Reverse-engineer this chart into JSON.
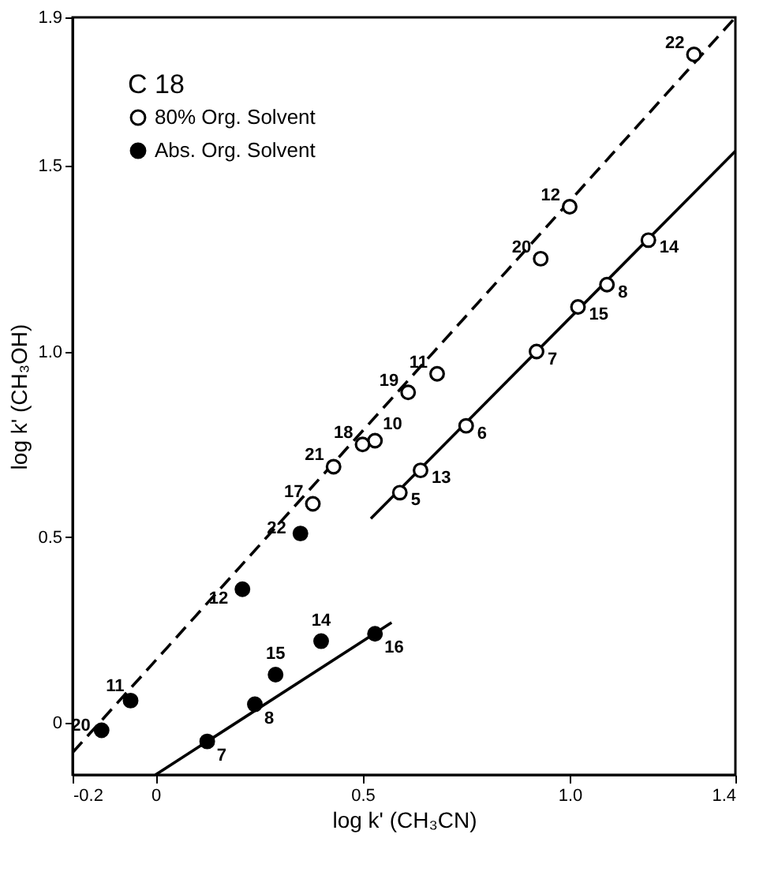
{
  "chart_data": {
    "type": "scatter",
    "xlabel": "log k' (CH₃CN)",
    "ylabel": "log k' (CH₃OH)",
    "legend_title": "C 18",
    "legend": "top left",
    "grid": false,
    "xlim": [
      -0.2,
      1.4
    ],
    "xticks": [
      -0.2,
      0,
      0.5,
      {
        "value": 1,
        "label": "1.0"
      },
      1.4
    ],
    "ylim": [
      -0.14,
      1.9
    ],
    "yticks": [
      0,
      0.5,
      {
        "value": 1,
        "label": "1.0"
      },
      1.5,
      1.9
    ],
    "series": [
      {
        "type": "line",
        "color": "#000000",
        "line_style": "dashed",
        "x": [
          -0.2,
          1.4
        ],
        "values": [
          -0.08,
          1.9
        ]
      },
      {
        "type": "line",
        "color": "#000000",
        "line_style": "solid",
        "x": [
          0.52,
          1.4
        ],
        "values": [
          0.55,
          1.54
        ]
      },
      {
        "type": "line",
        "color": "#000000",
        "line_style": "solid",
        "x": [
          0,
          0.57
        ],
        "values": [
          -0.14,
          0.27
        ]
      },
      {
        "name": "80% Org. Solvent",
        "color": "#ffffff",
        "marker": "circle",
        "x": [
          1.3,
          1.0,
          0.93,
          0.68,
          0.61,
          0.53,
          0.5,
          0.43,
          0.38
        ],
        "values": [
          1.8,
          1.39,
          1.25,
          0.94,
          0.89,
          0.76,
          0.75,
          0.69,
          0.59
        ]
      },
      {
        "color": "#ffffff",
        "marker": "circle",
        "x": [
          1.19,
          1.09,
          1.02,
          0.92,
          0.75,
          0.64,
          0.59
        ],
        "values": [
          1.3,
          1.18,
          1.12,
          1.0,
          0.8,
          0.68,
          0.62
        ]
      },
      {
        "name": "Abs. Org. Solvent",
        "color": "#000000",
        "marker": "circle",
        "x": [
          0.35,
          0.21,
          -0.06,
          -0.13
        ],
        "values": [
          0.51,
          0.36,
          0.06,
          -0.02
        ]
      },
      {
        "color": "#000000",
        "marker": "circle",
        "x": [
          0.4,
          0.29,
          0.53,
          0.24,
          0.125
        ],
        "values": [
          0.22,
          0.13,
          0.24,
          0.05,
          -0.05
        ]
      }
    ],
    "annotations": [
      {
        "text": "22",
        "x": 1.3,
        "y": 1.8
      },
      {
        "text": "12",
        "x": 1.0,
        "y": 1.39
      },
      {
        "text": "20",
        "x": 0.93,
        "y": 1.25
      },
      {
        "text": "11",
        "x": 0.68,
        "y": 0.94
      },
      {
        "text": "19",
        "x": 0.61,
        "y": 0.89
      },
      {
        "text": "10",
        "x": 0.53,
        "y": 0.76
      },
      {
        "text": "18",
        "x": 0.5,
        "y": 0.75
      },
      {
        "text": "21",
        "x": 0.43,
        "y": 0.69
      },
      {
        "text": "17",
        "x": 0.38,
        "y": 0.59
      },
      {
        "text": "14",
        "x": 1.19,
        "y": 1.3
      },
      {
        "text": "8",
        "x": 1.09,
        "y": 1.18
      },
      {
        "text": "15",
        "x": 1.02,
        "y": 1.12
      },
      {
        "text": "7",
        "x": 0.92,
        "y": 1.0
      },
      {
        "text": "6",
        "x": 0.75,
        "y": 0.8
      },
      {
        "text": "13",
        "x": 0.64,
        "y": 0.68
      },
      {
        "text": "5",
        "x": 0.59,
        "y": 0.62
      },
      {
        "text": "22",
        "x": 0.35,
        "y": 0.51
      },
      {
        "text": "12",
        "x": 0.21,
        "y": 0.36
      },
      {
        "text": "11",
        "x": -0.06,
        "y": 0.06
      },
      {
        "text": "20",
        "x": -0.13,
        "y": -0.02
      },
      {
        "text": "14",
        "x": 0.4,
        "y": 0.22
      },
      {
        "text": "15",
        "x": 0.29,
        "y": 0.13
      },
      {
        "text": "16",
        "x": 0.53,
        "y": 0.24
      },
      {
        "text": "8",
        "x": 0.24,
        "y": 0.05
      },
      {
        "text": "7",
        "x": 0.125,
        "y": -0.05
      }
    ]
  }
}
